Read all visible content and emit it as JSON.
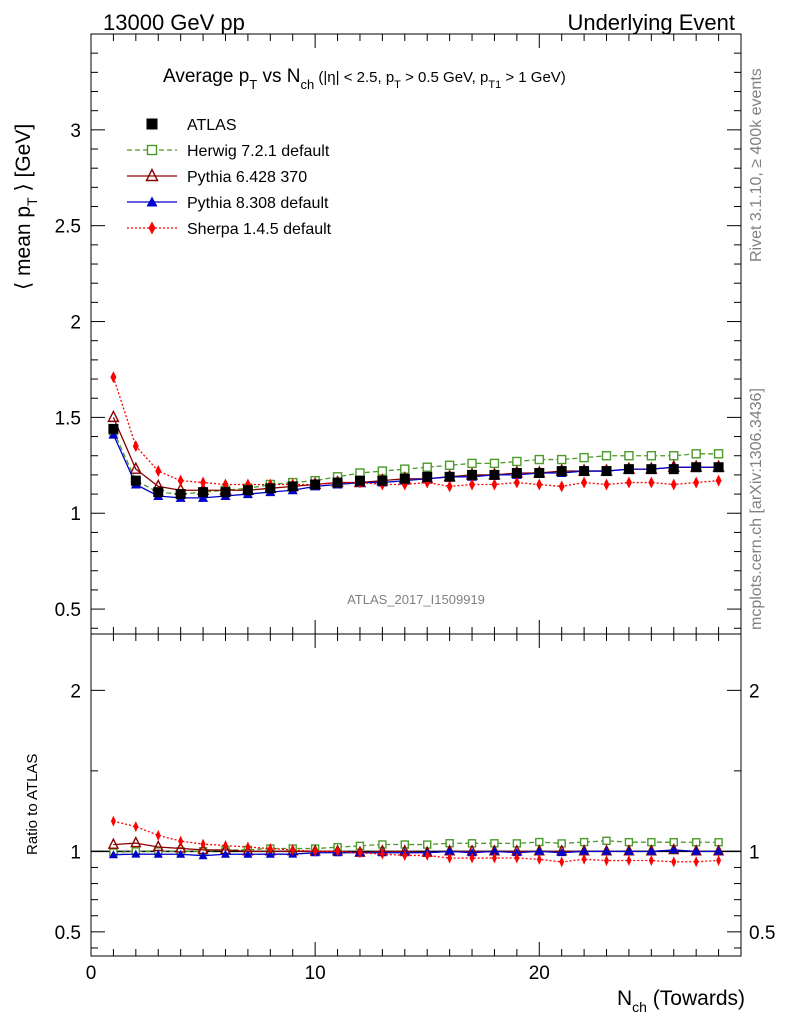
{
  "header": {
    "left": "13000 GeV pp",
    "right": "Underlying Event"
  },
  "side": {
    "rivet": "Rivet 3.1.10, ≥ 400k events",
    "mcplots": "mcplots.cern.ch [arXiv:1306.3436]"
  },
  "chart_data": {
    "type": "line",
    "title": {
      "main": "Average p",
      "main_sub": "T",
      "mid": " vs N",
      "mid_sub": "ch",
      "cut1": " (|η| < 2.5, p",
      "cut1_sub": "T",
      "cut2": " > 0.5 GeV, p",
      "cut2_sub": "T1",
      "cut3": " > 1 GeV)"
    },
    "ylabel": {
      "pre": "⟨ mean p",
      "sub": "T",
      "post": " ⟩ [GeV]"
    },
    "ratio_ylabel": "Ratio to ATLAS",
    "xlabel": {
      "pre": "N",
      "sub": "ch",
      "post": " (Towards)"
    },
    "watermark": "ATLAS_2017_I1509919",
    "xlim": [
      0,
      29
    ],
    "ylim": [
      0.37,
      3.5
    ],
    "ratio_ylim": [
      0.35,
      2.35
    ],
    "x_ticks": [
      "0",
      "10",
      "20"
    ],
    "y_ticks": [
      "0.5",
      "1",
      "1.5",
      "2",
      "2.5",
      "3"
    ],
    "ratio_y_ticks": [
      "0.5",
      "1",
      "2"
    ],
    "x": [
      1,
      2,
      3,
      4,
      5,
      6,
      7,
      8,
      9,
      10,
      11,
      12,
      13,
      14,
      15,
      16,
      17,
      18,
      19,
      20,
      21,
      22,
      23,
      24,
      25,
      26,
      27,
      28
    ],
    "series": [
      {
        "name": "ATLAS",
        "color": "#000000",
        "marker": "square-filled",
        "line": "none",
        "values": [
          1.44,
          1.17,
          1.11,
          1.1,
          1.11,
          1.11,
          1.12,
          1.13,
          1.14,
          1.15,
          1.16,
          1.17,
          1.17,
          1.18,
          1.19,
          1.19,
          1.2,
          1.2,
          1.21,
          1.21,
          1.22,
          1.22,
          1.22,
          1.23,
          1.23,
          1.23,
          1.24,
          1.24
        ]
      },
      {
        "name": "Herwig 7.2.1 default",
        "color": "#4c9a2a",
        "marker": "square-open",
        "line": "dashed",
        "values": [
          1.43,
          1.17,
          1.11,
          1.1,
          1.11,
          1.12,
          1.13,
          1.15,
          1.16,
          1.17,
          1.19,
          1.21,
          1.22,
          1.23,
          1.24,
          1.25,
          1.26,
          1.26,
          1.27,
          1.28,
          1.28,
          1.29,
          1.3,
          1.3,
          1.3,
          1.3,
          1.31,
          1.31
        ]
      },
      {
        "name": "Pythia 6.428 370",
        "color": "#8b0000",
        "marker": "triangle-open",
        "line": "solid",
        "values": [
          1.5,
          1.23,
          1.14,
          1.12,
          1.12,
          1.12,
          1.12,
          1.13,
          1.14,
          1.15,
          1.16,
          1.16,
          1.17,
          1.18,
          1.18,
          1.19,
          1.2,
          1.2,
          1.21,
          1.21,
          1.22,
          1.22,
          1.22,
          1.23,
          1.23,
          1.24,
          1.24,
          1.24
        ]
      },
      {
        "name": "Pythia 8.308 default",
        "color": "#0000cc",
        "marker": "triangle-filled",
        "line": "solid",
        "values": [
          1.41,
          1.15,
          1.09,
          1.08,
          1.08,
          1.09,
          1.1,
          1.11,
          1.12,
          1.14,
          1.15,
          1.16,
          1.16,
          1.17,
          1.18,
          1.19,
          1.19,
          1.2,
          1.2,
          1.21,
          1.21,
          1.22,
          1.22,
          1.23,
          1.23,
          1.24,
          1.24,
          1.24
        ]
      },
      {
        "name": "Sherpa 1.4.5 default",
        "color": "#ff0000",
        "marker": "diamond-filled",
        "line": "dotted",
        "values": [
          1.71,
          1.35,
          1.22,
          1.17,
          1.16,
          1.15,
          1.15,
          1.15,
          1.15,
          1.15,
          1.16,
          1.16,
          1.15,
          1.15,
          1.16,
          1.14,
          1.15,
          1.15,
          1.16,
          1.15,
          1.14,
          1.16,
          1.15,
          1.16,
          1.16,
          1.15,
          1.16,
          1.17
        ]
      }
    ]
  }
}
